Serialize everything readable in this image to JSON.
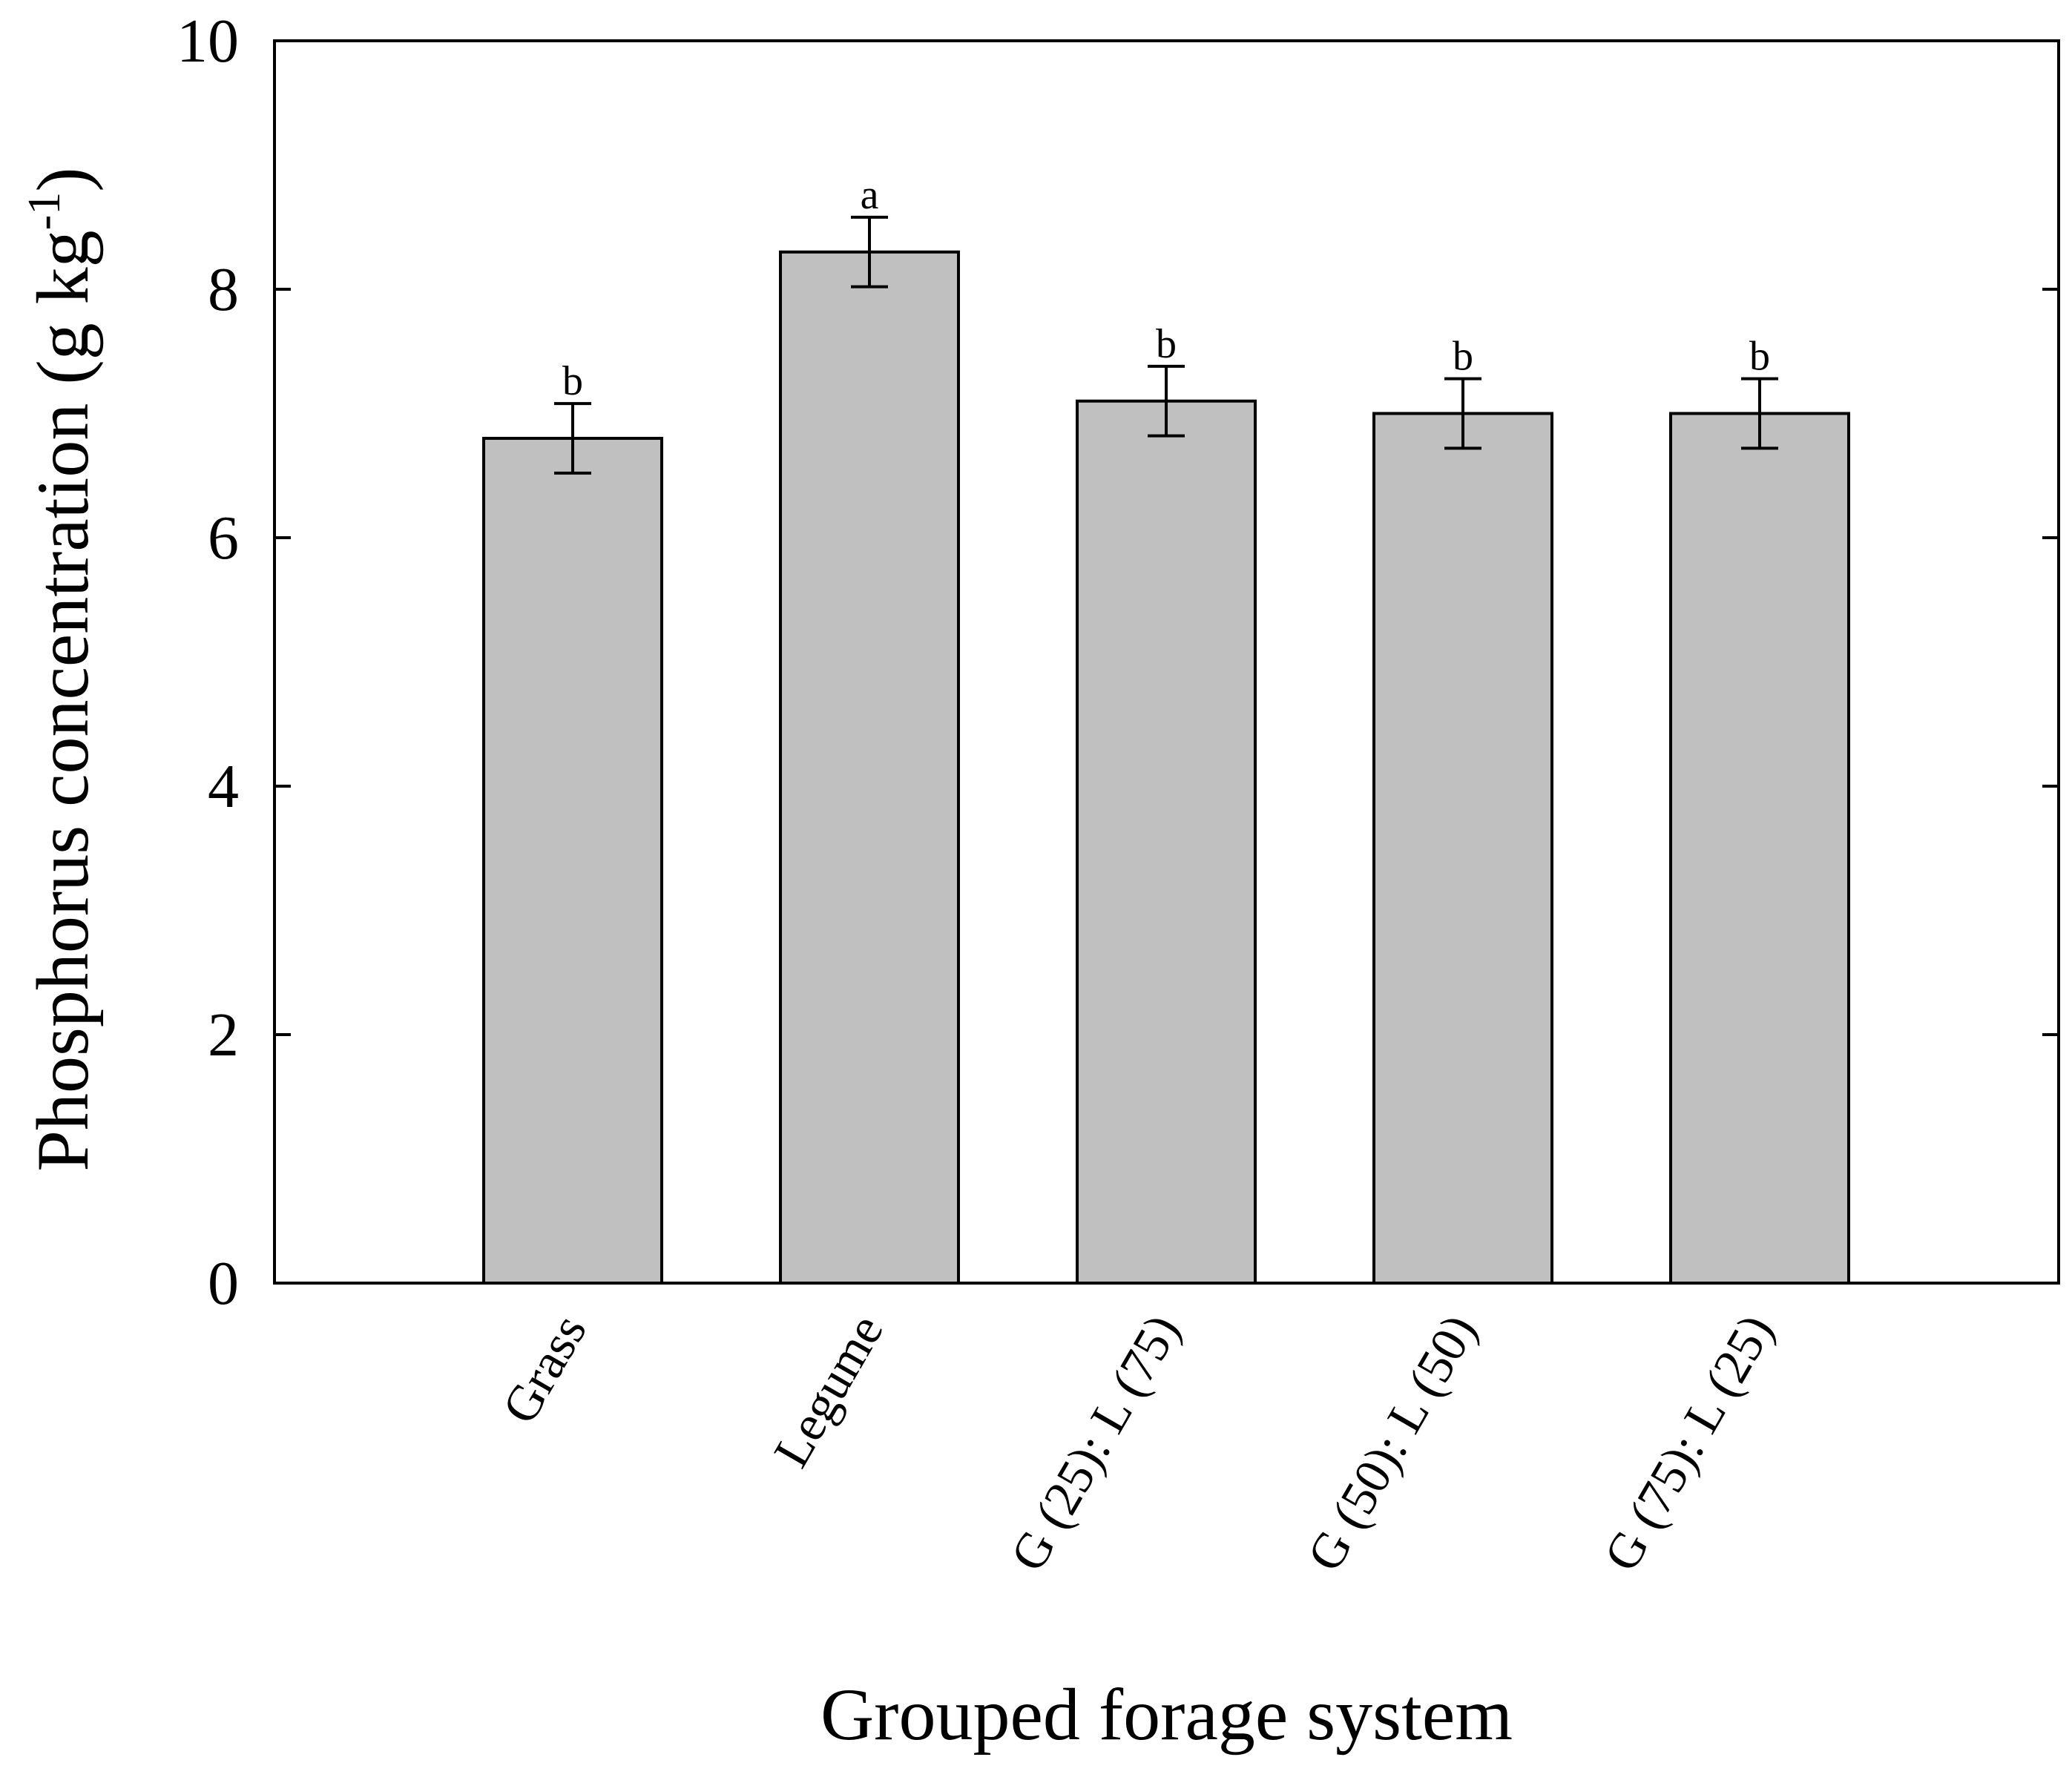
{
  "chart_data": {
    "type": "bar",
    "categories": [
      "Grass",
      "Legume",
      "G (25): L (75)",
      "G (50): L (50)",
      "G (75): L (25)"
    ],
    "values": [
      6.8,
      8.3,
      7.1,
      7.0,
      7.0
    ],
    "error": [
      0.28,
      0.28,
      0.28,
      0.28,
      0.28
    ],
    "significance_letters": [
      "b",
      "a",
      "b",
      "b",
      "b"
    ],
    "xlabel": "Grouped forage system",
    "ylabel": "Phosphorus concentration (g kg",
    "ylabel_superscript": "-1",
    "ylabel_suffix": ")",
    "ylim": [
      0,
      10
    ],
    "yticks": [
      0,
      2,
      4,
      6,
      8,
      10
    ],
    "grid": false,
    "legend": "none",
    "bar_color": "#c0c0c0"
  }
}
